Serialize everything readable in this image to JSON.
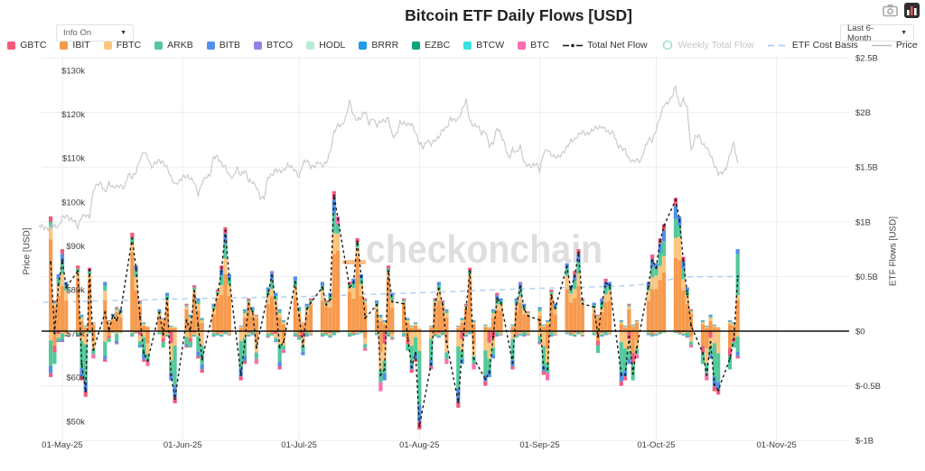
{
  "header": {
    "title": "Bitcoin ETF Daily Flows [USD]",
    "info_dropdown": {
      "label": "Info On",
      "caret": "▼"
    },
    "range_dropdown": {
      "label": "Last 6-Month",
      "caret": "▼"
    }
  },
  "watermark": {
    "text": "checkonchain",
    "text_color": "#dedede",
    "dash_color": "#f9bd88"
  },
  "legend": {
    "etfs": [
      {
        "label": "GBTC",
        "color": "#f25b7a"
      },
      {
        "label": "IBIT",
        "color": "#f79a4d"
      },
      {
        "label": "FBTC",
        "color": "#fac57f"
      },
      {
        "label": "ARKB",
        "color": "#52c99a"
      },
      {
        "label": "BITB",
        "color": "#4f90e8"
      },
      {
        "label": "BTCO",
        "color": "#8f83ea"
      },
      {
        "label": "HODL",
        "color": "#b9ead2"
      },
      {
        "label": "BRRR",
        "color": "#1f9ce5"
      },
      {
        "label": "EZBC",
        "color": "#0ba57a"
      },
      {
        "label": "BTCW",
        "color": "#39e2df"
      },
      {
        "label": "BTC",
        "color": "#f770ae"
      }
    ],
    "lines": [
      {
        "label": "Total Net Flow",
        "style": "dash-dot",
        "color": "#1a1a1a",
        "disabled": false
      },
      {
        "label": "Weekly Total Flow",
        "style": "circle",
        "color": "#9fe3cf",
        "disabled": true
      },
      {
        "label": "ETF Cost Basis",
        "style": "dashes",
        "color": "#aacdf4",
        "disabled": false
      },
      {
        "label": "Price",
        "style": "line",
        "color": "#bdbdbd",
        "disabled": false
      }
    ]
  },
  "axes": {
    "left": {
      "title": "Price [USD]",
      "tick_labels": [
        "$130k",
        "$120k",
        "$110k",
        "$100k",
        "$90k",
        "$80k",
        "$70k",
        "$60k",
        "$50k"
      ],
      "tick_values": [
        130,
        120,
        110,
        100,
        90,
        80,
        70,
        60,
        50
      ]
    },
    "right": {
      "title": "ETF Flows [USD]",
      "tick_labels": [
        "$2.5B",
        "$2B",
        "$1.5B",
        "$1B",
        "$0.5B",
        "$0",
        "$-0.5B",
        "$-1B"
      ],
      "tick_values": [
        2.5,
        2,
        1.5,
        1,
        0.5,
        0,
        -0.5,
        -1
      ]
    },
    "x": {
      "tick_labels": [
        "01-May-25",
        "01-Jun-25",
        "01-Jul-25",
        "01-Aug-25",
        "01-Sep-25",
        "01-Oct-25",
        "01-Nov-25"
      ],
      "tick_days": [
        6,
        37,
        67,
        98,
        129,
        159,
        190
      ]
    }
  },
  "chart_data": {
    "type": "combo",
    "description": "Daily US spot Bitcoin ETF net flows (stacked bars, right axis, $B) with Total Net Flow dashed line, BTC price (gray, left axis, $k), and ETF Cost Basis dashed line. Day 0 = 25-Apr-2025; bars are weekdays starting 28-Apr-2025.",
    "price_start_day": 0,
    "price_usd_k": [
      94.7,
      94.3,
      93.8,
      94.2,
      94.5,
      94.2,
      96.5,
      96.9,
      96.0,
      95.9,
      94.3,
      96.8,
      97.0,
      96.5,
      102.7,
      104.0,
      104.1,
      102.1,
      104.2,
      103.3,
      103.5,
      103.7,
      103.2,
      106.4,
      105.6,
      106.9,
      109.7,
      111.6,
      110.2,
      107.8,
      109.0,
      109.4,
      108.9,
      107.8,
      105.6,
      104.0,
      104.6,
      105.7,
      105.9,
      105.4,
      104.6,
      101.6,
      104.4,
      105.7,
      105.9,
      110.3,
      110.2,
      108.6,
      107.9,
      106.0,
      105.5,
      107.8,
      106.1,
      107.3,
      104.9,
      104.6,
      103.5,
      101.0,
      100.9,
      105.7,
      106.1,
      107.3,
      107.0,
      107.1,
      108.4,
      108.0,
      107.2,
      105.7,
      108.9,
      109.6,
      108.0,
      108.2,
      109.2,
      108.1,
      108.9,
      111.3,
      115.9,
      117.5,
      117.4,
      119.1,
      123.0,
      119.8,
      118.7,
      119.3,
      120.9,
      117.9,
      119.2,
      117.4,
      118.4,
      118.4,
      119.0,
      115.1,
      115.1,
      118.1,
      117.9,
      117.7,
      117.8,
      115.8,
      113.4,
      112.5,
      114.1,
      113.2,
      114.1,
      114.7,
      116.5,
      116.8,
      119.0,
      118.6,
      118.8,
      120.9,
      123.3,
      118.4,
      117.4,
      117.4,
      115.7,
      116.2,
      112.9,
      113.4,
      116.9,
      115.4,
      113.0,
      109.7,
      111.9,
      111.2,
      112.7,
      108.8,
      108.4,
      108.2,
      108.8,
      107.3,
      111.3,
      112.0,
      110.7,
      110.2,
      110.3,
      111.2,
      112.5,
      113.9,
      114.1,
      115.4,
      116.1,
      115.4,
      115.9,
      116.8,
      117.0,
      117.2,
      116.4,
      115.7,
      115.8,
      112.8,
      112.4,
      111.8,
      109.6,
      109.2,
      109.6,
      109.3,
      112.1,
      114.3,
      114.0,
      116.6,
      119.4,
      122.2,
      122.5,
      123.9,
      126.2,
      121.7,
      123.3,
      121.3,
      111.5,
      114.8,
      115.2,
      113.1,
      112.5,
      110.7,
      108.4,
      106.5,
      106.6,
      107.5,
      110.9,
      113.4,
      108.5
    ],
    "bars_start": "Mon 28-Apr-2025 (weekdays only)",
    "bars_pos_neg_b": [
      [
        1.05,
        -0.42,
        0,
        3
      ],
      [
        0.28,
        -0.3
      ],
      [
        0.52,
        -0.1
      ],
      [
        0.75,
        -0.1,
        2
      ],
      [
        0.45,
        -0.05
      ],
      [
        0.6,
        -0.05
      ],
      [
        0.15,
        -0.45,
        1,
        3
      ],
      [
        0.05,
        -0.6,
        1,
        3
      ],
      [
        0.58,
        -0.02,
        0
      ],
      [
        0.08,
        -0.25
      ],
      [
        0.45,
        -0.28
      ],
      [
        0.1,
        -0.1
      ],
      [
        0.16,
        -0.02
      ],
      [
        0.22,
        -0.12
      ],
      [
        0.2,
        -0.02
      ],
      [
        0.9,
        -0.05,
        0
      ],
      [
        0.6,
        -0.02
      ],
      [
        0.28,
        -0.15
      ],
      [
        0.08,
        -0.28
      ],
      [
        0.05,
        -0.32
      ],
      [
        0.2,
        -0.03
      ],
      [
        0.12,
        -0.15
      ],
      [
        0.35,
        -0.05
      ],
      [
        0.05,
        -0.45,
        1,
        2
      ],
      [
        0.04,
        -0.66,
        1,
        3
      ],
      [
        0.25,
        -0.15
      ],
      [
        0.15,
        -0.15
      ],
      [
        0.42,
        -0.05
      ],
      [
        0.3,
        -0.25
      ],
      [
        0.12,
        -0.38,
        1,
        0
      ],
      [
        0.25,
        -0.05
      ],
      [
        0.38,
        -0.04
      ],
      [
        0.6,
        -0.05,
        2
      ],
      [
        0.95,
        -0.03,
        2
      ],
      [
        0.52,
        -0.04
      ],
      [
        0.05,
        -0.45,
        1,
        3
      ],
      [
        0.2,
        -0.3,
        1,
        3
      ],
      [
        0.3,
        -0.05
      ],
      [
        0.22,
        -0.04
      ],
      [
        0.15,
        -0.3
      ],
      [
        0.4,
        -0.06
      ],
      [
        0.55,
        -0.04,
        4
      ],
      [
        0.35,
        -0.1
      ],
      [
        0.2,
        -0.35,
        1,
        0
      ],
      [
        0.1,
        -0.2
      ],
      [
        0.5,
        -0.05,
        1
      ],
      [
        0.22,
        -0.08
      ],
      [
        0.08,
        -0.22
      ],
      [
        0.25,
        -0.05
      ],
      [
        0.3,
        -0.04
      ],
      [
        0.45,
        -0.05,
        1
      ],
      [
        0.28,
        -0.04
      ],
      [
        0.35,
        -0.06
      ],
      [
        1.28,
        -0.04,
        2
      ],
      [
        1.05,
        -0.02,
        3
      ],
      [
        0.45,
        -0.05
      ],
      [
        0.48,
        -0.04
      ],
      [
        0.85,
        -0.03,
        0
      ],
      [
        0.52,
        -0.02
      ],
      [
        0.3,
        -0.18
      ],
      [
        0.28,
        -0.04
      ],
      [
        0.15,
        -0.55,
        1,
        4
      ],
      [
        0.1,
        -0.45,
        1,
        2
      ],
      [
        0.6,
        -0.05,
        0
      ],
      [
        0.35,
        -0.08
      ],
      [
        0.3,
        -0.05
      ],
      [
        0.12,
        -0.18
      ],
      [
        0.05,
        -0.38,
        1,
        0
      ],
      [
        0.08,
        -0.28
      ],
      [
        0.03,
        -0.9,
        1,
        3
      ],
      [
        0.05,
        -0.35,
        1,
        3
      ],
      [
        0.3,
        -0.05
      ],
      [
        0.45,
        -0.06,
        1
      ],
      [
        0.28,
        -0.04
      ],
      [
        0.2,
        -0.3
      ],
      [
        0.05,
        -0.7,
        1,
        3
      ],
      [
        0.12,
        -0.3,
        1,
        2
      ],
      [
        0.25,
        -0.05
      ],
      [
        0.58,
        -0.03,
        0
      ],
      [
        0.1,
        -0.35,
        1,
        4
      ],
      [
        0.06,
        -0.5,
        1,
        0
      ],
      [
        0.04,
        -0.42,
        1,
        2
      ],
      [
        0.2,
        -0.25
      ],
      [
        0.35,
        -0.05,
        2
      ],
      [
        0.3,
        -0.04
      ],
      [
        0.06,
        -0.35,
        1,
        3
      ],
      [
        0.3,
        -0.06
      ],
      [
        0.45,
        -0.04,
        4
      ],
      [
        0.25,
        -0.05
      ],
      [
        0.18,
        -0.04
      ],
      [
        0.22,
        -0.12
      ],
      [
        0.06,
        -0.4,
        1,
        0
      ],
      [
        0.1,
        -0.45,
        1,
        4
      ],
      [
        0.38,
        -0.05
      ],
      [
        0.25,
        -0.04
      ],
      [
        0.62,
        -0.03,
        1
      ],
      [
        0.42,
        -0.04
      ],
      [
        0.55,
        -0.05,
        2
      ],
      [
        0.75,
        -0.03,
        2
      ],
      [
        0.3,
        -0.05
      ],
      [
        0.26,
        -0.04
      ],
      [
        0.15,
        -0.2
      ],
      [
        0.3,
        -0.05,
        4
      ],
      [
        0.48,
        -0.04,
        2
      ],
      [
        0.45,
        -0.03
      ],
      [
        0.1,
        -0.5,
        1,
        3
      ],
      [
        0.05,
        -0.45,
        1,
        0
      ],
      [
        0.25,
        -0.3
      ],
      [
        0.06,
        -0.45,
        1,
        1
      ],
      [
        0.1,
        -0.25
      ],
      [
        0.45,
        -0.04,
        1
      ],
      [
        0.7,
        -0.05,
        2
      ],
      [
        0.62,
        -0.04
      ],
      [
        0.85,
        -0.03,
        2
      ],
      [
        0.98,
        -0.02,
        2
      ],
      [
        1.22,
        -0.02,
        2
      ],
      [
        1.05,
        -0.03,
        1
      ],
      [
        0.68,
        -0.04,
        2
      ],
      [
        0.4,
        -0.06
      ],
      [
        0.2,
        -0.15
      ],
      [
        0.1,
        -0.3,
        1,
        1
      ],
      [
        0.05,
        -0.45,
        1,
        4
      ],
      [
        0.15,
        -0.25,
        1,
        2
      ],
      [
        0.06,
        -0.55,
        1,
        3
      ],
      [
        0.04,
        -0.58,
        1,
        0
      ],
      [
        0.1,
        -0.35,
        1,
        1
      ],
      [
        0.08,
        -0.15
      ],
      [
        0.75,
        -0.25,
        5,
        3
      ]
    ],
    "pos_mix_presets": [
      [
        [
          "IBIT",
          0.8
        ],
        [
          "FBTC",
          0.1
        ],
        [
          "ARKB",
          0.05
        ],
        [
          "GBTC",
          0.05
        ]
      ],
      [
        [
          "IBIT",
          0.62
        ],
        [
          "FBTC",
          0.2
        ],
        [
          "ARKB",
          0.1
        ],
        [
          "BITB",
          0.08
        ]
      ],
      [
        [
          "IBIT",
          0.55
        ],
        [
          "FBTC",
          0.15
        ],
        [
          "ARKB",
          0.14
        ],
        [
          "BITB",
          0.1
        ],
        [
          "GBTC",
          0.06
        ]
      ],
      [
        [
          "IBIT",
          0.7
        ],
        [
          "FBTC",
          0.15
        ],
        [
          "ARKB",
          0.08
        ],
        [
          "BTC",
          0.07
        ]
      ],
      [
        [
          "IBIT",
          0.58
        ],
        [
          "FBTC",
          0.12
        ],
        [
          "ARKB",
          0.16
        ],
        [
          "BITB",
          0.09
        ],
        [
          "BTCO",
          0.05
        ]
      ],
      [
        [
          "IBIT",
          0.38
        ],
        [
          "FBTC",
          0.06
        ],
        [
          "ARKB",
          0.5
        ],
        [
          "BITB",
          0.06
        ]
      ]
    ],
    "neg_mix_presets": [
      [
        [
          "FBTC",
          0.35
        ],
        [
          "ARKB",
          0.45
        ],
        [
          "BITB",
          0.12
        ],
        [
          "GBTC",
          0.08
        ]
      ],
      [
        [
          "IBIT",
          0.45
        ],
        [
          "GBTC",
          0.2
        ],
        [
          "ARKB",
          0.35
        ]
      ],
      [
        [
          "GBTC",
          0.25
        ],
        [
          "FBTC",
          0.35
        ],
        [
          "ARKB",
          0.25
        ],
        [
          "BITB",
          0.15
        ]
      ],
      [
        [
          "FBTC",
          0.2
        ],
        [
          "ARKB",
          0.55
        ],
        [
          "BITB",
          0.17
        ],
        [
          "GBTC",
          0.08
        ]
      ],
      [
        [
          "IBIT",
          0.35
        ],
        [
          "FBTC",
          0.3
        ],
        [
          "ARKB",
          0.2
        ],
        [
          "BTC",
          0.15
        ]
      ]
    ],
    "cost_basis_day_pricek": [
      [
        1,
        77.1
      ],
      [
        37,
        77.9
      ],
      [
        67,
        78.4
      ],
      [
        98,
        79.3
      ],
      [
        129,
        80.3
      ],
      [
        150,
        80.8
      ],
      [
        159,
        81.4
      ],
      [
        165,
        82.9
      ],
      [
        180,
        83.0
      ]
    ],
    "layout": {
      "price_axis_range_k": [
        50,
        130
      ],
      "flow_axis_range_b": [
        -1.3,
        2.5
      ],
      "x_range_days": [
        0,
        209
      ],
      "grid": true,
      "zero_line_color": "#111111",
      "price_line_color": "#c7c7c7",
      "net_line_color": "#1a1a1a",
      "cost_basis_color": "#aacdf4",
      "grid_color": "#ededed"
    }
  }
}
